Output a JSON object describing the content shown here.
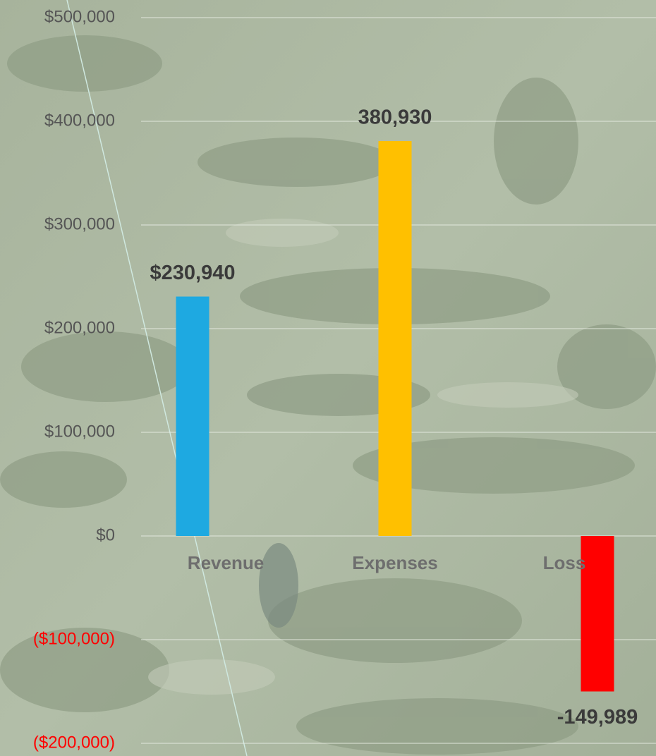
{
  "chart_data": {
    "type": "bar",
    "categories": [
      "Revenue",
      "Expenses",
      "Loss"
    ],
    "values": [
      230940,
      380930,
      -149989
    ],
    "value_labels": [
      "$230,940",
      "380,930",
      "-149,989"
    ],
    "colors": [
      "#1ea9e1",
      "#ffc000",
      "#ff0000"
    ],
    "ylim": [
      -200000,
      500000
    ],
    "yticks": [
      {
        "value": -200000,
        "label": "($200,000)"
      },
      {
        "value": -100000,
        "label": "($100,000)"
      },
      {
        "value": 0,
        "label": "$0"
      },
      {
        "value": 100000,
        "label": "$100,000"
      },
      {
        "value": 200000,
        "label": "$200,000"
      },
      {
        "value": 300000,
        "label": "$300,000"
      },
      {
        "value": 400000,
        "label": "$400,000"
      },
      {
        "value": 500000,
        "label": "$500,000"
      }
    ],
    "tick_color": "#555555",
    "negative_tick_color": "#ff0000",
    "grid": true
  }
}
